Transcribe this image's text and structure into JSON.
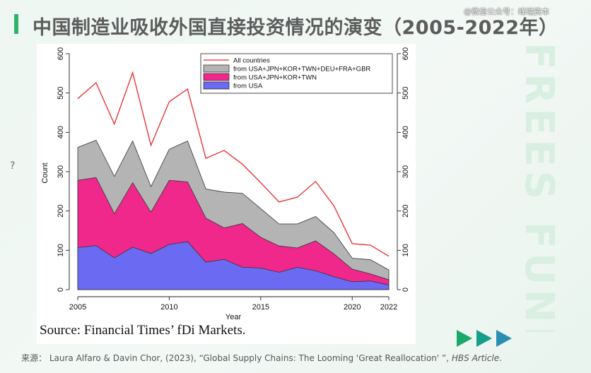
{
  "page": {
    "title": "中国制造业吸收外国直接投资情况的演变（2005-2022年）",
    "wechat_tag": "@微信公众号：峰瑞资本",
    "watermark": "FREES FUND",
    "side_mark": "?",
    "accent_color": "#2fb36b",
    "arrow_colors": [
      "#1aa96a",
      "#169e88",
      "#2a8fb0"
    ]
  },
  "chart_source": "Source: Financial Times’ fDi Markets.",
  "footer": {
    "prefix": "来源：",
    "citation": "Laura Alfaro & Davin Chor, (2023), “Global Supply Chains: The Looming 'Great Reallocation' ”,",
    "journal": "HBS Article",
    "suffix": "."
  },
  "chart_data": {
    "type": "area",
    "xlabel": "Year",
    "ylabel": "Count",
    "xlim": [
      2005,
      2022
    ],
    "ylim": [
      0,
      600
    ],
    "x_ticks": [
      2005,
      2010,
      2015,
      2020,
      2022
    ],
    "y_ticks": [
      0,
      100,
      200,
      300,
      400,
      500,
      600
    ],
    "x": [
      2005,
      2006,
      2007,
      2008,
      2009,
      2010,
      2011,
      2012,
      2013,
      2014,
      2015,
      2016,
      2017,
      2018,
      2019,
      2020,
      2021,
      2022
    ],
    "legend_position": "top-right",
    "series": [
      {
        "name": "All countries",
        "kind": "line",
        "color": "#e8282b",
        "values": [
          486,
          526,
          421,
          552,
          367,
          478,
          510,
          334,
          354,
          319,
          272,
          223,
          235,
          275,
          213,
          117,
          113,
          85
        ]
      },
      {
        "name": "from USA+JPN+KOR+TWN+DEU+FRA+GBR",
        "kind": "area",
        "color": "#b4b4b4",
        "values": [
          362,
          380,
          288,
          378,
          262,
          357,
          378,
          256,
          248,
          245,
          206,
          167,
          167,
          186,
          145,
          80,
          76,
          50
        ]
      },
      {
        "name": "from USA+JPN+KOR+TWN",
        "kind": "area",
        "color": "#f0288c",
        "values": [
          278,
          285,
          193,
          272,
          197,
          278,
          274,
          182,
          157,
          168,
          133,
          111,
          106,
          124,
          91,
          52,
          40,
          25
        ]
      },
      {
        "name": "from USA",
        "kind": "area",
        "color": "#6a6af2",
        "values": [
          107,
          112,
          81,
          108,
          92,
          115,
          122,
          70,
          77,
          57,
          55,
          44,
          57,
          48,
          33,
          20,
          22,
          12
        ]
      }
    ]
  }
}
